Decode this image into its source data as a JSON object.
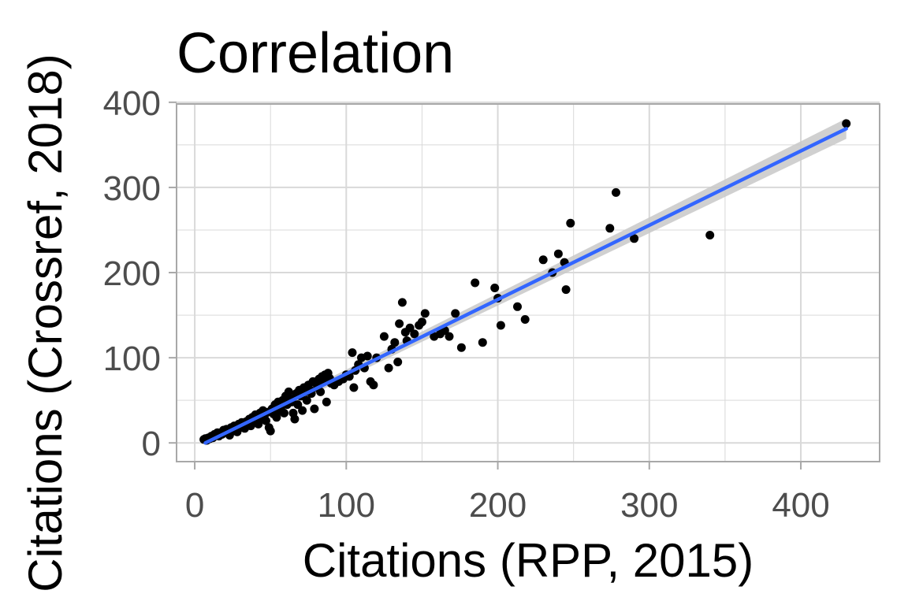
{
  "chart_data": {
    "type": "scatter",
    "title": "Correlation",
    "xlabel": "Citations (RPP, 2015)",
    "ylabel": "Citations (Crossref, 2018)",
    "xlim": [
      -12,
      452
    ],
    "ylim": [
      -22,
      398
    ],
    "xticks": [
      0,
      100,
      200,
      300,
      400
    ],
    "yticks": [
      0,
      100,
      200,
      300,
      400
    ],
    "x_minor": [
      50,
      150,
      250,
      350
    ],
    "y_minor": [
      50,
      150,
      250,
      350
    ],
    "grid": true,
    "colors": {
      "points": "#000000",
      "fit_line": "#3366ff",
      "confidence_band": "#c8c8c8",
      "grid": "#d9d9d9",
      "panel_border": "#a8a8a8",
      "tick_labels": "#4d4d4d"
    },
    "fit": {
      "type": "linear",
      "x": [
        7,
        430
      ],
      "y": [
        0,
        369
      ],
      "band_halfwidth": [
        3,
        12
      ]
    },
    "points": [
      [
        6,
        4
      ],
      [
        7,
        5
      ],
      [
        8,
        3
      ],
      [
        9,
        6
      ],
      [
        10,
        5
      ],
      [
        11,
        8
      ],
      [
        12,
        6
      ],
      [
        13,
        10
      ],
      [
        14,
        9
      ],
      [
        15,
        12
      ],
      [
        16,
        8
      ],
      [
        17,
        12
      ],
      [
        18,
        10
      ],
      [
        19,
        15
      ],
      [
        20,
        13
      ],
      [
        21,
        16
      ],
      [
        22,
        12
      ],
      [
        23,
        9
      ],
      [
        24,
        18
      ],
      [
        25,
        14
      ],
      [
        26,
        20
      ],
      [
        27,
        16
      ],
      [
        28,
        13
      ],
      [
        29,
        22
      ],
      [
        30,
        18
      ],
      [
        31,
        24
      ],
      [
        32,
        21
      ],
      [
        33,
        17
      ],
      [
        34,
        25
      ],
      [
        35,
        22
      ],
      [
        36,
        28
      ],
      [
        37,
        20
      ],
      [
        38,
        30
      ],
      [
        39,
        25
      ],
      [
        40,
        33
      ],
      [
        41,
        27
      ],
      [
        42,
        22
      ],
      [
        43,
        35
      ],
      [
        44,
        30
      ],
      [
        45,
        38
      ],
      [
        46,
        32
      ],
      [
        47,
        26
      ],
      [
        48,
        36
      ],
      [
        49,
        18
      ],
      [
        50,
        14
      ],
      [
        51,
        40
      ],
      [
        52,
        34
      ],
      [
        53,
        45
      ],
      [
        54,
        30
      ],
      [
        55,
        48
      ],
      [
        56,
        38
      ],
      [
        57,
        42
      ],
      [
        58,
        50
      ],
      [
        59,
        35
      ],
      [
        60,
        55
      ],
      [
        61,
        45
      ],
      [
        62,
        60
      ],
      [
        63,
        52
      ],
      [
        64,
        48
      ],
      [
        65,
        35
      ],
      [
        66,
        28
      ],
      [
        67,
        58
      ],
      [
        68,
        45
      ],
      [
        69,
        62
      ],
      [
        70,
        55
      ],
      [
        71,
        38
      ],
      [
        72,
        65
      ],
      [
        73,
        60
      ],
      [
        74,
        50
      ],
      [
        75,
        68
      ],
      [
        76,
        62
      ],
      [
        77,
        58
      ],
      [
        78,
        72
      ],
      [
        79,
        40
      ],
      [
        80,
        70
      ],
      [
        81,
        65
      ],
      [
        82,
        75
      ],
      [
        83,
        60
      ],
      [
        84,
        78
      ],
      [
        85,
        72
      ],
      [
        86,
        80
      ],
      [
        87,
        48
      ],
      [
        88,
        82
      ],
      [
        89,
        76
      ],
      [
        90,
        70
      ],
      [
        92,
        68
      ],
      [
        95,
        72
      ],
      [
        98,
        75
      ],
      [
        100,
        80
      ],
      [
        102,
        78
      ],
      [
        104,
        106
      ],
      [
        105,
        65
      ],
      [
        106,
        85
      ],
      [
        108,
        92
      ],
      [
        110,
        100
      ],
      [
        112,
        88
      ],
      [
        114,
        102
      ],
      [
        116,
        72
      ],
      [
        118,
        68
      ],
      [
        120,
        100
      ],
      [
        125,
        125
      ],
      [
        128,
        88
      ],
      [
        130,
        110
      ],
      [
        132,
        118
      ],
      [
        134,
        95
      ],
      [
        135,
        140
      ],
      [
        137,
        165
      ],
      [
        139,
        130
      ],
      [
        140,
        120
      ],
      [
        142,
        135
      ],
      [
        145,
        128
      ],
      [
        148,
        138
      ],
      [
        150,
        142
      ],
      [
        152,
        152
      ],
      [
        158,
        125
      ],
      [
        162,
        128
      ],
      [
        165,
        132
      ],
      [
        168,
        125
      ],
      [
        172,
        152
      ],
      [
        176,
        112
      ],
      [
        185,
        188
      ],
      [
        190,
        118
      ],
      [
        198,
        182
      ],
      [
        200,
        170
      ],
      [
        202,
        138
      ],
      [
        213,
        160
      ],
      [
        218,
        145
      ],
      [
        230,
        215
      ],
      [
        236,
        200
      ],
      [
        240,
        222
      ],
      [
        244,
        212
      ],
      [
        245,
        180
      ],
      [
        248,
        258
      ],
      [
        274,
        252
      ],
      [
        278,
        294
      ],
      [
        290,
        240
      ],
      [
        340,
        244
      ],
      [
        430,
        375
      ]
    ]
  }
}
